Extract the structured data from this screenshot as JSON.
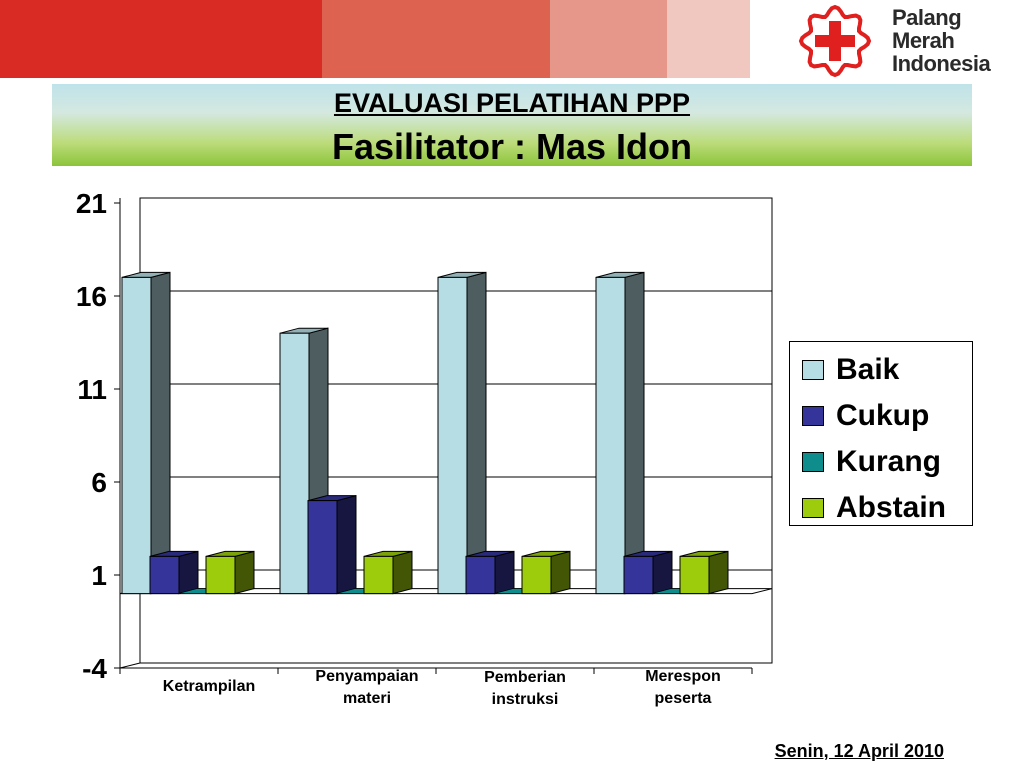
{
  "header": {
    "band_colors": [
      "#d92a24",
      "#de6250",
      "#e7968a",
      "#f1c8c0"
    ],
    "logo_lines": [
      "Palang",
      "Merah",
      "Indonesia"
    ],
    "logo_color": "#e0201e"
  },
  "title": {
    "line1": "EVALUASI PELATIHAN PPP",
    "line2": "Fasilitator  : Mas Idon"
  },
  "chart_data": {
    "type": "bar",
    "categories": [
      "Ketrampilan",
      "Penyampaian\nmateri",
      "Pemberian\ninstruksi",
      "Merespon\npeserta"
    ],
    "series": [
      {
        "name": "Baik",
        "values": [
          17,
          14,
          17,
          17
        ],
        "color": "#b7dde4"
      },
      {
        "name": "Cukup",
        "values": [
          2,
          5,
          2,
          2
        ],
        "color": "#35349a"
      },
      {
        "name": "Kurang",
        "values": [
          0,
          0,
          0,
          0
        ],
        "color": "#0f8d8d"
      },
      {
        "name": "Abstain",
        "values": [
          2,
          2,
          2,
          2
        ],
        "color": "#9ccc0c"
      }
    ],
    "y_ticks": [
      "21",
      "16",
      "11",
      "6",
      "1",
      "-4"
    ],
    "ylim": [
      -4,
      21
    ],
    "grid": true,
    "legend_position": "right"
  },
  "footer": {
    "date": "Senin, 12 April 2010"
  }
}
